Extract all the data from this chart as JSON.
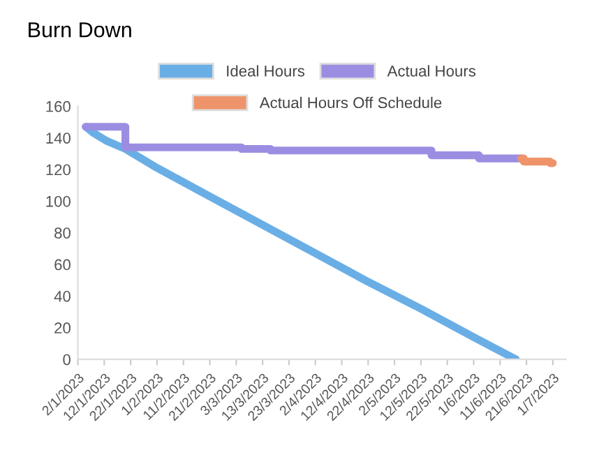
{
  "chart_data": {
    "type": "line",
    "title": "Burn Down",
    "series": [
      {
        "name": "Ideal Hours",
        "color": "#6aaee6",
        "x": [
          "2023-01-05",
          "2023-01-08",
          "2023-01-13",
          "2023-01-20",
          "2023-02-01",
          "2023-02-21",
          "2023-03-13",
          "2023-04-02",
          "2023-04-22",
          "2023-05-12",
          "2023-06-01",
          "2023-06-17"
        ],
        "values": [
          147,
          143,
          138,
          133,
          121,
          103,
          85,
          67,
          49,
          32,
          14,
          0
        ]
      },
      {
        "name": "Actual Hours",
        "color": "#9b8ee2",
        "type": "step",
        "x": [
          "2023-01-05",
          "2023-01-20",
          "2023-03-05",
          "2023-03-16",
          "2023-05-16",
          "2023-06-03",
          "2023-06-19"
        ],
        "values": [
          147,
          134,
          133,
          132,
          129,
          127,
          127
        ]
      },
      {
        "name": "Actual Hours Off Schedule",
        "color": "#ee936a",
        "type": "step",
        "x": [
          "2023-06-19",
          "2023-06-20",
          "2023-06-30",
          "2023-07-01"
        ],
        "values": [
          127,
          125,
          124,
          124
        ]
      }
    ],
    "xlim": [
      "2023-01-02",
      "2023-07-06"
    ],
    "xticks": [
      {
        "value": "2023-01-02",
        "label": "2/1/2023"
      },
      {
        "value": "2023-01-12",
        "label": "12/1/2023"
      },
      {
        "value": "2023-01-22",
        "label": "22/1/2023"
      },
      {
        "value": "2023-02-01",
        "label": "1/2/2023"
      },
      {
        "value": "2023-02-11",
        "label": "11/2/2023"
      },
      {
        "value": "2023-02-21",
        "label": "21/2/2023"
      },
      {
        "value": "2023-03-03",
        "label": "3/3/2023"
      },
      {
        "value": "2023-03-13",
        "label": "13/3/2023"
      },
      {
        "value": "2023-03-23",
        "label": "23/3/2023"
      },
      {
        "value": "2023-04-02",
        "label": "2/4/2023"
      },
      {
        "value": "2023-04-12",
        "label": "12/4/2023"
      },
      {
        "value": "2023-04-22",
        "label": "22/4/2023"
      },
      {
        "value": "2023-05-02",
        "label": "2/5/2023"
      },
      {
        "value": "2023-05-12",
        "label": "12/5/2023"
      },
      {
        "value": "2023-05-22",
        "label": "22/5/2023"
      },
      {
        "value": "2023-06-01",
        "label": "1/6/2023"
      },
      {
        "value": "2023-06-11",
        "label": "11/6/2023"
      },
      {
        "value": "2023-06-21",
        "label": "21/6/2023"
      },
      {
        "value": "2023-07-01",
        "label": "1/7/2023"
      }
    ],
    "ylim": [
      0,
      160
    ],
    "yticks": [
      0,
      20,
      40,
      60,
      80,
      100,
      120,
      140,
      160
    ],
    "grid": false,
    "legend": "top",
    "marker": "none",
    "line_style": "solid"
  }
}
